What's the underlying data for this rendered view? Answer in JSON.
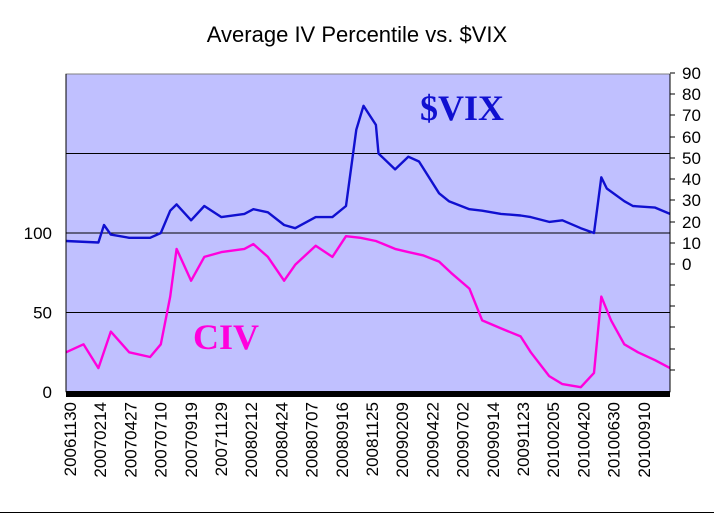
{
  "chart_data": {
    "type": "line",
    "title": "Average IV Percentile vs. $VIX",
    "plot_background": "#c0c0ff",
    "left_axis": {
      "ticks": [
        0,
        50,
        100
      ],
      "range": [
        0,
        200
      ]
    },
    "right_axis": {
      "ticks": [
        0,
        10,
        20,
        30,
        40,
        50,
        60,
        70,
        80,
        90
      ]
    },
    "x_tick_labels": [
      "20061130",
      "20070214",
      "20070427",
      "20070710",
      "20070919",
      "20071129",
      "20080212",
      "20080424",
      "20080707",
      "20080916",
      "20081125",
      "20090209",
      "20090422",
      "20090702",
      "20090914",
      "20091123",
      "20100205",
      "20100420",
      "20100630",
      "20100910"
    ],
    "series": [
      {
        "name": "$VIX",
        "color": "#1010d0",
        "axis": "left",
        "dates": [
          "20061130",
          "20070214",
          "20070227",
          "20070315",
          "20070427",
          "20070615",
          "20070710",
          "20070801",
          "20070816",
          "20070919",
          "20071020",
          "20071129",
          "20080122",
          "20080212",
          "20080317",
          "20080424",
          "20080520",
          "20080707",
          "20080815",
          "20080916",
          "20081010",
          "20081027",
          "20081125",
          "20081201",
          "20090109",
          "20090209",
          "20090306",
          "20090422",
          "20090515",
          "20090702",
          "20090801",
          "20090914",
          "20091030",
          "20091123",
          "20100105",
          "20100205",
          "20100320",
          "20100420",
          "20100507",
          "20100520",
          "20100630",
          "20100720",
          "20100910",
          "20101015"
        ],
        "values": [
          95,
          94,
          105,
          99,
          97,
          97,
          100,
          114,
          118,
          108,
          117,
          110,
          112,
          115,
          113,
          105,
          103,
          110,
          110,
          117,
          165,
          180,
          168,
          150,
          140,
          148,
          145,
          125,
          120,
          115,
          114,
          112,
          111,
          110,
          107,
          108,
          103,
          100,
          135,
          128,
          120,
          117,
          116,
          112
        ]
      },
      {
        "name": "CIV",
        "color": "#ff00dd",
        "axis": "left",
        "dates": [
          "20061130",
          "20070110",
          "20070214",
          "20070315",
          "20070427",
          "20070615",
          "20070710",
          "20070801",
          "20070816",
          "20070919",
          "20071020",
          "20071129",
          "20080122",
          "20080212",
          "20080317",
          "20080424",
          "20080520",
          "20080707",
          "20080815",
          "20080916",
          "20081020",
          "20081125",
          "20090109",
          "20090209",
          "20090315",
          "20090422",
          "20090520",
          "20090702",
          "20090801",
          "20090914",
          "20091030",
          "20091123",
          "20100105",
          "20100205",
          "20100320",
          "20100420",
          "20100507",
          "20100530",
          "20100630",
          "20100801",
          "20100910",
          "20101015"
        ],
        "values": [
          25,
          30,
          15,
          38,
          25,
          22,
          30,
          60,
          90,
          70,
          85,
          88,
          90,
          93,
          85,
          70,
          80,
          92,
          85,
          98,
          97,
          95,
          90,
          88,
          86,
          82,
          75,
          65,
          45,
          40,
          35,
          25,
          10,
          5,
          3,
          12,
          60,
          45,
          30,
          25,
          20,
          15
        ]
      }
    ]
  }
}
